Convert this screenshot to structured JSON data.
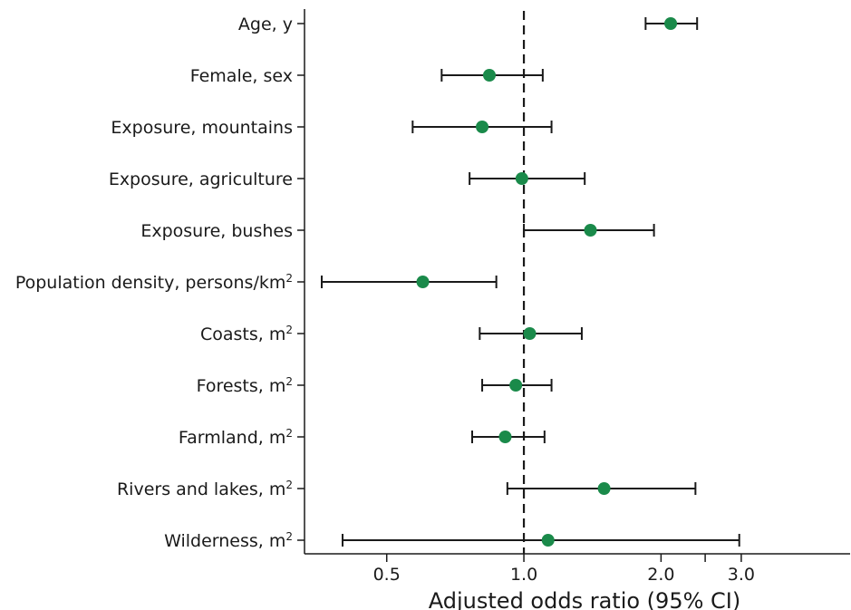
{
  "chart_data": {
    "type": "forest",
    "title": "",
    "xlabel": "Adjusted odds ratio (95% CI)",
    "ylabel": "",
    "x_scale": "log",
    "xlim": [
      0.33,
      5.2
    ],
    "x_ticks": [
      0.5,
      1.0,
      2.0,
      3.0
    ],
    "x_tick_labels": [
      "0.5",
      "1.0",
      "2.0",
      "3.0"
    ],
    "x_minor_ticks": [
      2.5
    ],
    "reference_line": 1.0,
    "grid": false,
    "legend": "none",
    "point_color": "#1a8a4a",
    "categories": [
      {
        "label": "Age, y",
        "sup": "",
        "or": 2.1,
        "lower": 1.85,
        "upper": 2.4
      },
      {
        "label": "Female, sex",
        "sup": "",
        "or": 0.84,
        "lower": 0.66,
        "upper": 1.1
      },
      {
        "label": "Exposure, mountains",
        "sup": "",
        "or": 0.81,
        "lower": 0.57,
        "upper": 1.15
      },
      {
        "label": "Exposure, agriculture",
        "sup": "",
        "or": 0.99,
        "lower": 0.76,
        "upper": 1.36
      },
      {
        "label": "Exposure, bushes",
        "sup": "",
        "or": 1.4,
        "lower": 1.0,
        "upper": 1.93
      },
      {
        "label": "Population density, persons/km",
        "sup": "2",
        "or": 0.6,
        "lower": 0.36,
        "upper": 0.87
      },
      {
        "label": "Coasts, m",
        "sup": "2",
        "or": 1.03,
        "lower": 0.8,
        "upper": 1.34
      },
      {
        "label": "Forests, m",
        "sup": "2",
        "or": 0.96,
        "lower": 0.81,
        "upper": 1.15
      },
      {
        "label": "Farmland, m",
        "sup": "2",
        "or": 0.91,
        "lower": 0.77,
        "upper": 1.11
      },
      {
        "label": "Rivers and lakes, m",
        "sup": "2",
        "or": 1.5,
        "lower": 0.92,
        "upper": 2.38
      },
      {
        "label": "Wilderness, m",
        "sup": "2",
        "or": 1.13,
        "lower": 0.4,
        "upper": 2.97
      }
    ]
  }
}
